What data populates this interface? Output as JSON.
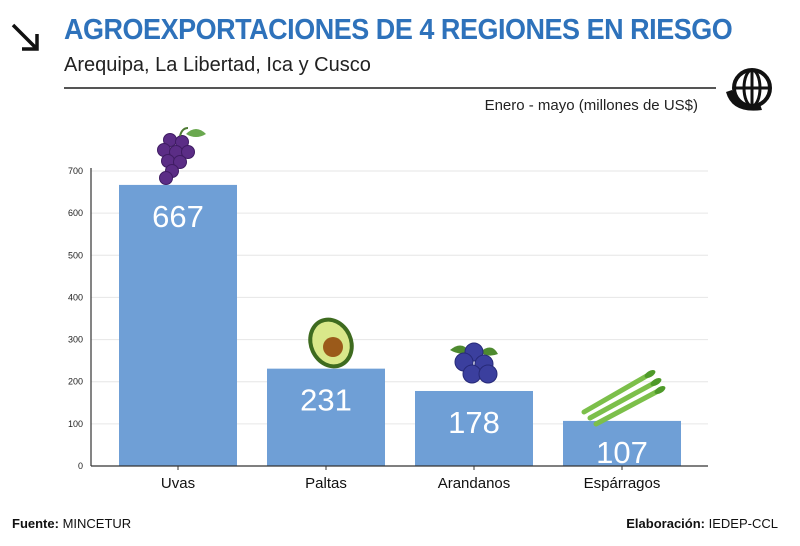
{
  "header": {
    "title": "AGROEXPORTACIONES DE 4 REGIONES EN RIESGO",
    "subtitle": "Arequipa, La Libertad, Ica y Cusco",
    "units": "Enero - mayo (millones de US$)"
  },
  "icons": {
    "arrow": "arrow-down-right-icon",
    "globe": "globe-trade-icon"
  },
  "colors": {
    "title": "#2e72bb",
    "bar": "#6f9fd6",
    "value_label": "#ffffff"
  },
  "chart_data": {
    "type": "bar",
    "title": "AGROEXPORTACIONES DE 4 REGIONES EN RIESGO",
    "subtitle": "Arequipa, La Libertad, Ica y Cusco",
    "ylabel": "Enero - mayo (millones de US$)",
    "xlabel": "",
    "categories": [
      "Uvas",
      "Paltas",
      "Arandanos",
      "Espárragos"
    ],
    "values": [
      667,
      231,
      178,
      107
    ],
    "value_labels": [
      "667",
      "231",
      "178",
      "107"
    ],
    "ylim": [
      0,
      700
    ],
    "yticks": [
      0,
      100,
      200,
      300,
      400,
      500,
      600,
      700
    ],
    "grid": true,
    "legend": "none"
  },
  "footer": {
    "source_label": "Fuente:",
    "source": "MINCETUR",
    "credit_label": "Elaboración:",
    "credit": "IEDEP-CCL"
  }
}
